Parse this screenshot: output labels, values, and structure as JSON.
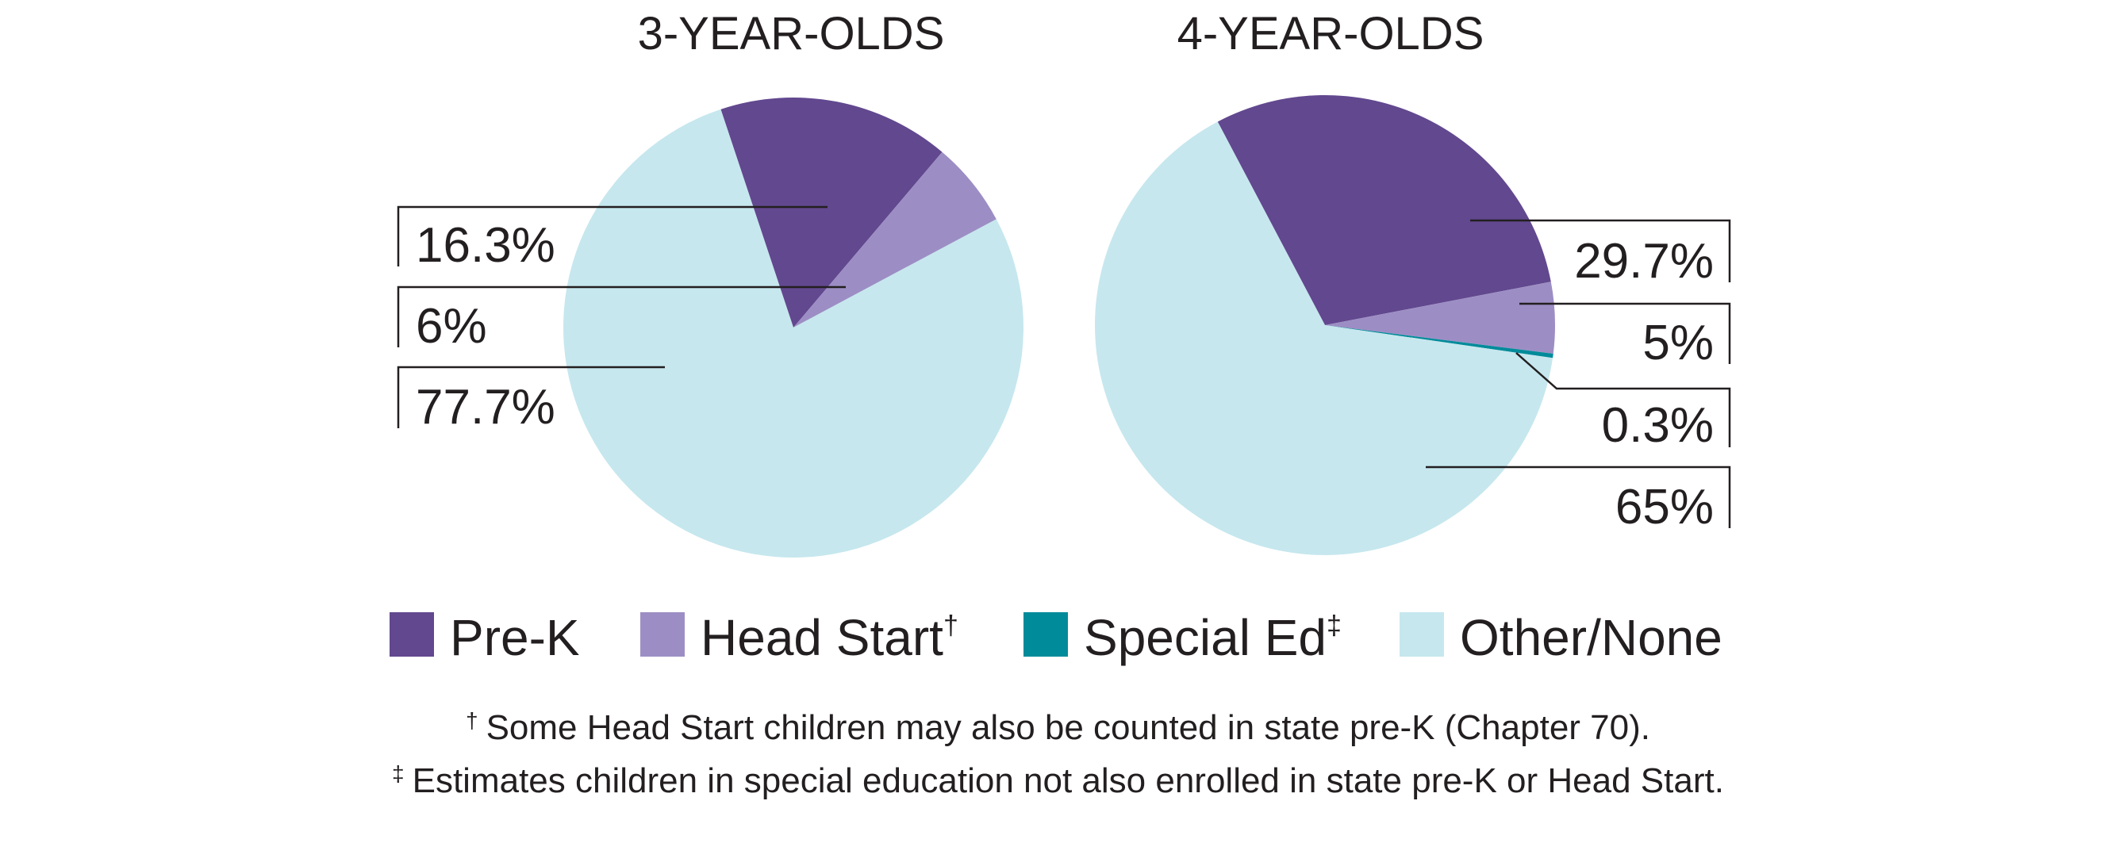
{
  "chart_data": [
    {
      "type": "pie",
      "title": "3-YEAR-OLDS",
      "slices": [
        {
          "label": "Pre-K",
          "value": 16.3,
          "display": "16.3%",
          "color": "#62488f"
        },
        {
          "label": "Head Start",
          "value": 6,
          "display": "6%",
          "color": "#9c8ec4"
        },
        {
          "label": "Other/None",
          "value": 77.7,
          "display": "77.7%",
          "color": "#c6e7ee"
        }
      ]
    },
    {
      "type": "pie",
      "title": "4-YEAR-OLDS",
      "slices": [
        {
          "label": "Pre-K",
          "value": 29.7,
          "display": "29.7%",
          "color": "#62488f"
        },
        {
          "label": "Head Start",
          "value": 5,
          "display": "5%",
          "color": "#9c8ec4"
        },
        {
          "label": "Special Ed",
          "value": 0.3,
          "display": "0.3%",
          "color": "#008b9a"
        },
        {
          "label": "Other/None",
          "value": 65,
          "display": "65%",
          "color": "#c6e7ee"
        }
      ]
    }
  ],
  "legend": [
    {
      "label": "Pre-K",
      "sup": "",
      "color": "#62488f"
    },
    {
      "label": "Head Start",
      "sup": "†",
      "color": "#9c8ec4"
    },
    {
      "label": "Special Ed",
      "sup": "‡",
      "color": "#008b9a"
    },
    {
      "label": "Other/None",
      "sup": "",
      "color": "#c6e7ee"
    }
  ],
  "footnotes": [
    {
      "symbol": "†",
      "text": "Some Head Start children may also be counted in state pre-K (Chapter 70)."
    },
    {
      "symbol": "‡",
      "text": "Estimates children in special education not also enrolled in state pre-K or Head Start."
    }
  ]
}
